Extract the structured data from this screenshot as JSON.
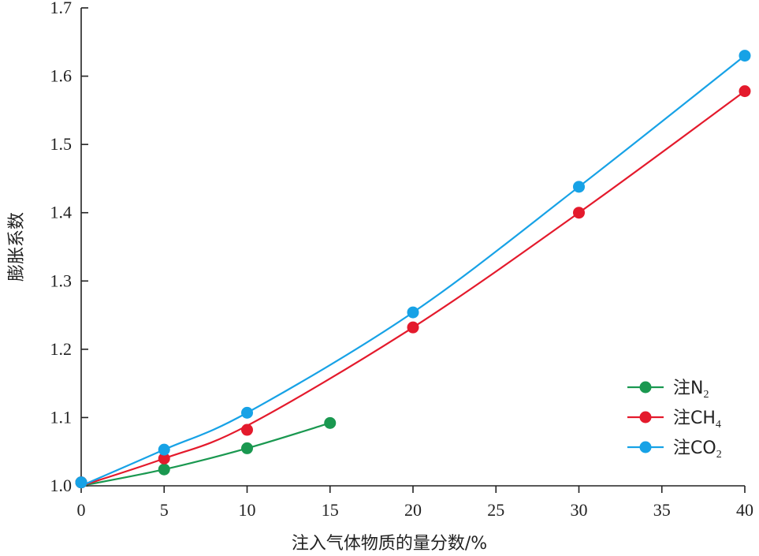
{
  "chart_data": {
    "type": "line",
    "xlabel": "注入气体物质的量分数/%",
    "ylabel": "膨胀系数",
    "xlim": [
      0,
      40
    ],
    "ylim": [
      1.0,
      1.7
    ],
    "xticks": [
      0,
      5,
      10,
      15,
      20,
      25,
      30,
      35,
      40
    ],
    "yticks": [
      1.0,
      1.1,
      1.2,
      1.3,
      1.4,
      1.5,
      1.6,
      1.7
    ],
    "xtick_labels": [
      "0",
      "5",
      "10",
      "15",
      "20",
      "25",
      "30",
      "35",
      "40"
    ],
    "ytick_labels": [
      "1.0",
      "1.1",
      "1.2",
      "1.3",
      "1.4",
      "1.5",
      "1.6",
      "1.7"
    ],
    "grid": false,
    "legend_position": "bottom-right",
    "series": [
      {
        "name": "注N2",
        "legend_main": "注N",
        "legend_sub": "2",
        "color": "#1a9850",
        "points": [
          [
            0,
            1.005
          ],
          [
            5,
            1.024
          ],
          [
            10,
            1.055
          ],
          [
            15,
            1.092
          ]
        ],
        "curve": [
          [
            0,
            1.0
          ],
          [
            5,
            1.024
          ],
          [
            10,
            1.055
          ],
          [
            15,
            1.092
          ]
        ]
      },
      {
        "name": "注CH4",
        "legend_main": "注CH",
        "legend_sub": "4",
        "color": "#e41a2c",
        "points": [
          [
            0,
            1.005
          ],
          [
            5,
            1.04
          ],
          [
            10,
            1.082
          ],
          [
            20,
            1.232
          ],
          [
            30,
            1.4
          ],
          [
            40,
            1.578
          ]
        ],
        "curve": [
          [
            0,
            1.0
          ],
          [
            5,
            1.04
          ],
          [
            10,
            1.088
          ],
          [
            20,
            1.232
          ],
          [
            30,
            1.4
          ],
          [
            40,
            1.578
          ]
        ]
      },
      {
        "name": "注CO2",
        "legend_main": "注CO",
        "legend_sub": "2",
        "color": "#17a2e6",
        "points": [
          [
            0,
            1.005
          ],
          [
            5,
            1.053
          ],
          [
            10,
            1.107
          ],
          [
            20,
            1.254
          ],
          [
            30,
            1.438
          ],
          [
            40,
            1.63
          ]
        ],
        "curve": [
          [
            0,
            1.0
          ],
          [
            5,
            1.053
          ],
          [
            10,
            1.107
          ],
          [
            20,
            1.254
          ],
          [
            30,
            1.438
          ],
          [
            40,
            1.63
          ]
        ]
      }
    ]
  }
}
